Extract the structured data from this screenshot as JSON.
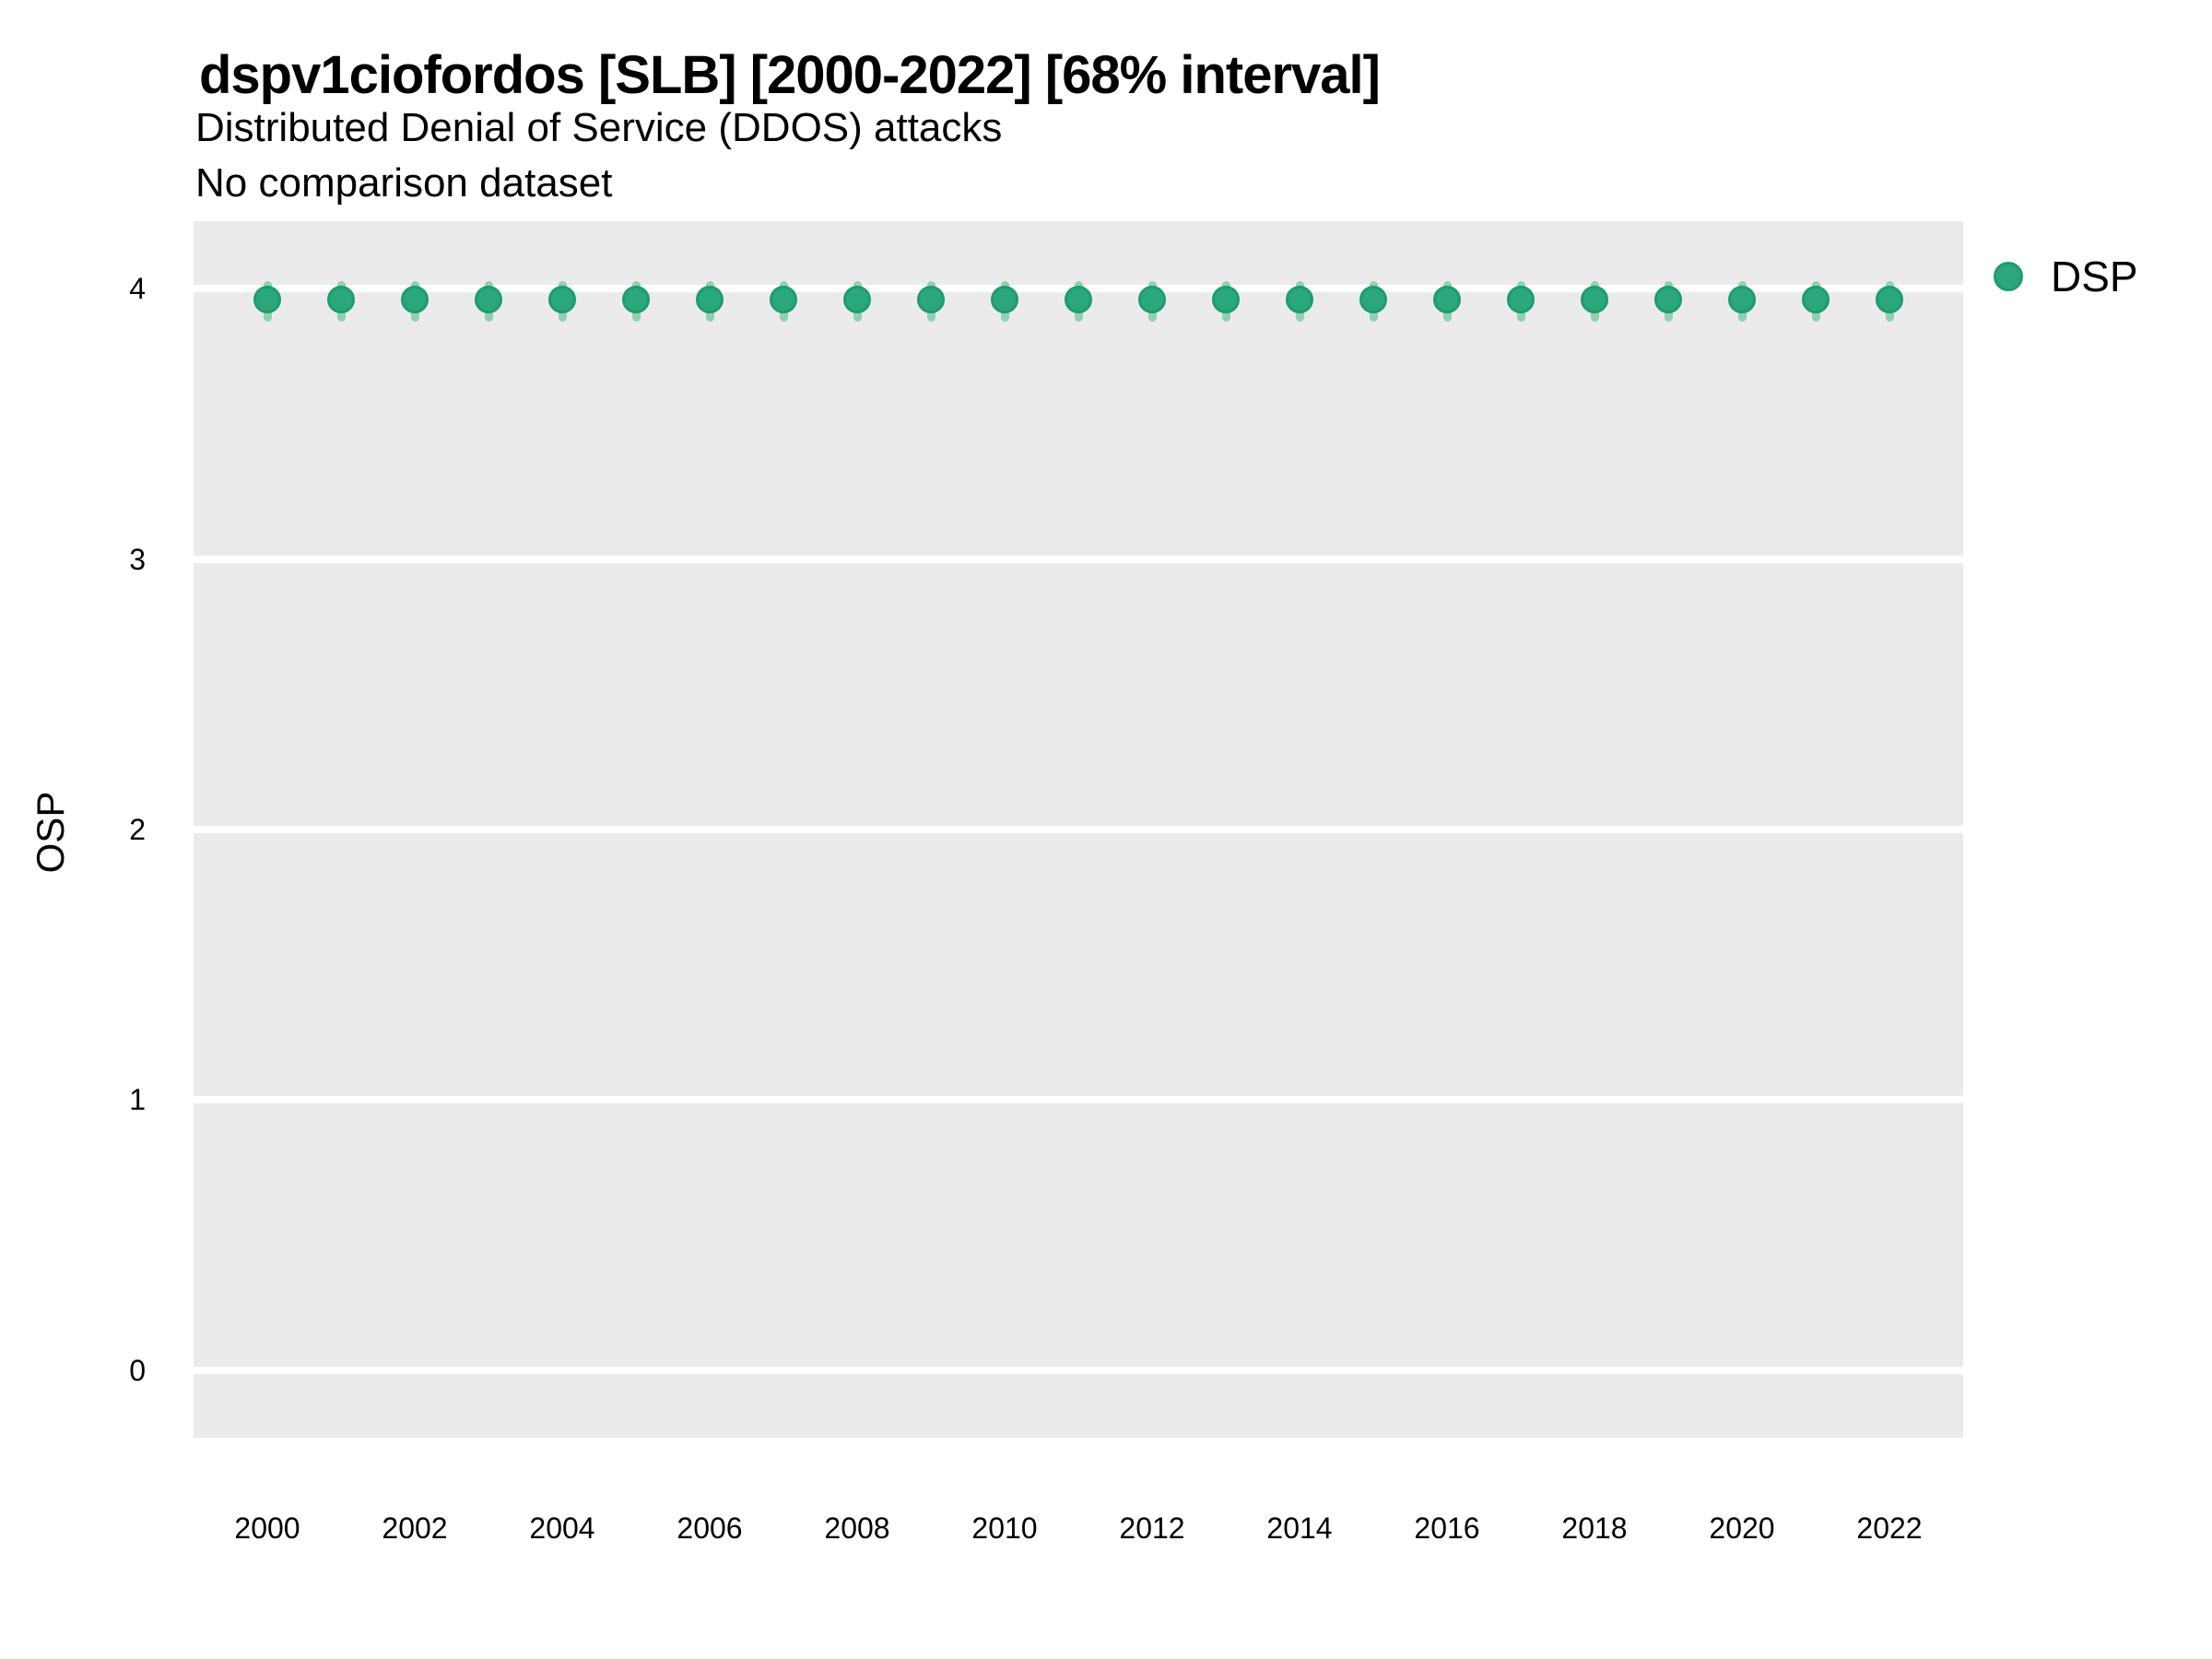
{
  "title": "dspv1ciofordos [SLB] [2000-2022] [68% interval]",
  "subtitle": "Distributed Denial of Service (DDOS) attacks",
  "note": "No comparison dataset",
  "axes": {
    "y_label": "OSP",
    "y_ticks": [
      4,
      3,
      2,
      1,
      0
    ],
    "x_ticks": [
      2000,
      2002,
      2004,
      2006,
      2008,
      2010,
      2012,
      2014,
      2016,
      2018,
      2020,
      2022
    ]
  },
  "legend": {
    "position": "top-right-outside",
    "entries": [
      {
        "label": "DSP",
        "marker": "circle-icon",
        "color": "#2aa87b"
      }
    ]
  },
  "chart_data": {
    "type": "scatter",
    "title": "dspv1ciofordos [SLB] [2000-2022] [68% interval]",
    "subtitle": "Distributed Denial of Service (DDOS) attacks",
    "note": "No comparison dataset",
    "xlabel": "",
    "ylabel": "OSP",
    "interval": "68%",
    "grid": "horizontal-major-only",
    "legend_position": "right-top",
    "xlim": [
      1999,
      2023
    ],
    "ylim": [
      -0.25,
      4.25
    ],
    "x": [
      2000,
      2001,
      2002,
      2003,
      2004,
      2005,
      2006,
      2007,
      2008,
      2009,
      2010,
      2011,
      2012,
      2013,
      2014,
      2015,
      2016,
      2017,
      2018,
      2019,
      2020,
      2021,
      2022
    ],
    "series": [
      {
        "name": "DSP",
        "values": [
          3.96,
          3.96,
          3.96,
          3.96,
          3.96,
          3.96,
          3.96,
          3.96,
          3.96,
          3.96,
          3.96,
          3.96,
          3.96,
          3.96,
          3.96,
          3.96,
          3.96,
          3.96,
          3.96,
          3.96,
          3.96,
          3.96,
          3.96
        ],
        "interval_low": [
          3.88,
          3.88,
          3.88,
          3.88,
          3.88,
          3.88,
          3.88,
          3.88,
          3.88,
          3.88,
          3.88,
          3.88,
          3.88,
          3.88,
          3.88,
          3.88,
          3.88,
          3.88,
          3.88,
          3.88,
          3.88,
          3.88,
          3.88
        ],
        "interval_high": [
          4.03,
          4.03,
          4.03,
          4.03,
          4.03,
          4.03,
          4.03,
          4.03,
          4.03,
          4.03,
          4.03,
          4.03,
          4.03,
          4.03,
          4.03,
          4.03,
          4.03,
          4.03,
          4.03,
          4.03,
          4.03,
          4.03,
          4.03
        ]
      }
    ]
  },
  "colors": {
    "point_fill": "#2aa87b",
    "point_stroke": "#1e9c6d",
    "interval": "#8ed1b2",
    "panel_bg": "#ebebeb",
    "gridline": "#ffffff",
    "text": "#000000"
  }
}
